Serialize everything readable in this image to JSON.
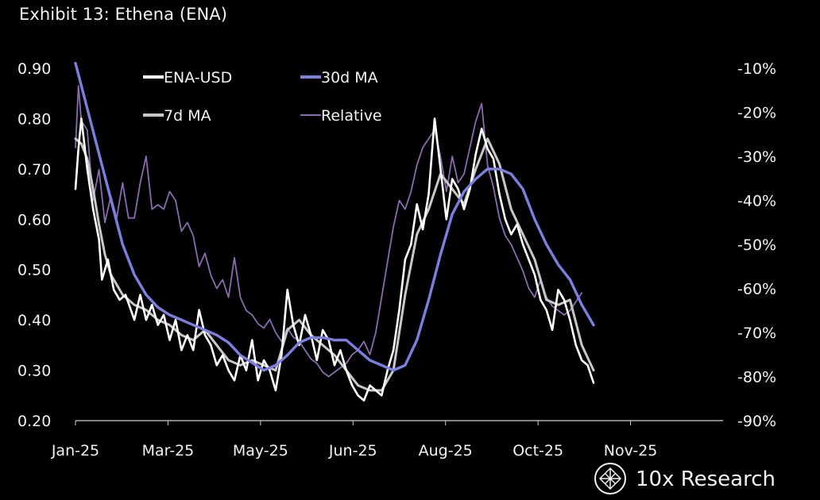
{
  "title": "Exhibit 13: Ethena (ENA)",
  "brand": "10x Research",
  "chart_data": {
    "type": "line",
    "title": "Exhibit 13: Ethena (ENA)",
    "x_categories": [
      "Jan-25",
      "Mar-25",
      "May-25",
      "Jun-25",
      "Aug-25",
      "Oct-25",
      "Nov-25"
    ],
    "y_left": {
      "range": [
        0.2,
        0.9
      ],
      "ticks": [
        "0.20",
        "0.30",
        "0.40",
        "0.50",
        "0.60",
        "0.70",
        "0.80",
        "0.90"
      ]
    },
    "y_right": {
      "range": [
        -90,
        -10
      ],
      "ticks": [
        "-10%",
        "-20%",
        "-30%",
        "-40%",
        "-50%",
        "-60%",
        "-70%",
        "-80%",
        "-90%"
      ]
    },
    "legend": [
      {
        "name": "ENA-USD",
        "color": "#ffffff"
      },
      {
        "name": "30d MA",
        "color": "#7b7fe0"
      },
      {
        "name": "7d MA",
        "color": "#c8c8c8"
      },
      {
        "name": "Relative",
        "color": "#8a6ab0"
      }
    ],
    "series": [
      {
        "name": "ENA-USD",
        "axis": "left",
        "color": "#ffffff",
        "values": [
          [
            0,
            0.66
          ],
          [
            0.5,
            0.74
          ],
          [
            1,
            0.8
          ],
          [
            2,
            0.7
          ],
          [
            3,
            0.62
          ],
          [
            4,
            0.56
          ],
          [
            4.5,
            0.48
          ],
          [
            5.5,
            0.52
          ],
          [
            6.5,
            0.46
          ],
          [
            7.5,
            0.44
          ],
          [
            8.5,
            0.45
          ],
          [
            10,
            0.4
          ],
          [
            11,
            0.45
          ],
          [
            12,
            0.4
          ],
          [
            13,
            0.43
          ],
          [
            14,
            0.39
          ],
          [
            15,
            0.41
          ],
          [
            16,
            0.36
          ],
          [
            17,
            0.4
          ],
          [
            18,
            0.34
          ],
          [
            19,
            0.37
          ],
          [
            20,
            0.34
          ],
          [
            21,
            0.42
          ],
          [
            22,
            0.37
          ],
          [
            23,
            0.35
          ],
          [
            24,
            0.31
          ],
          [
            25,
            0.33
          ],
          [
            26,
            0.3
          ],
          [
            27,
            0.28
          ],
          [
            28,
            0.33
          ],
          [
            29,
            0.3
          ],
          [
            30,
            0.36
          ],
          [
            31,
            0.28
          ],
          [
            32,
            0.32
          ],
          [
            33,
            0.3
          ],
          [
            34,
            0.26
          ],
          [
            35,
            0.33
          ],
          [
            36,
            0.46
          ],
          [
            37,
            0.39
          ],
          [
            38,
            0.35
          ],
          [
            39,
            0.41
          ],
          [
            40,
            0.37
          ],
          [
            41,
            0.32
          ],
          [
            42,
            0.38
          ],
          [
            43,
            0.36
          ],
          [
            44,
            0.31
          ],
          [
            45,
            0.34
          ],
          [
            46,
            0.3
          ],
          [
            47,
            0.27
          ],
          [
            48,
            0.25
          ],
          [
            49,
            0.24
          ],
          [
            50,
            0.27
          ],
          [
            51,
            0.26
          ],
          [
            52,
            0.25
          ],
          [
            53,
            0.3
          ],
          [
            54,
            0.34
          ],
          [
            55,
            0.42
          ],
          [
            56,
            0.52
          ],
          [
            57,
            0.55
          ],
          [
            58,
            0.63
          ],
          [
            59,
            0.58
          ],
          [
            60,
            0.65
          ],
          [
            61,
            0.8
          ],
          [
            62,
            0.7
          ],
          [
            63,
            0.6
          ],
          [
            64,
            0.68
          ],
          [
            65,
            0.66
          ],
          [
            66,
            0.62
          ],
          [
            67,
            0.66
          ],
          [
            68,
            0.73
          ],
          [
            69,
            0.78
          ],
          [
            70,
            0.74
          ],
          [
            71,
            0.72
          ],
          [
            72,
            0.65
          ],
          [
            73,
            0.6
          ],
          [
            74,
            0.57
          ],
          [
            75,
            0.59
          ],
          [
            76,
            0.55
          ],
          [
            77,
            0.52
          ],
          [
            78,
            0.49
          ],
          [
            79,
            0.44
          ],
          [
            80,
            0.42
          ],
          [
            81,
            0.38
          ],
          [
            82,
            0.46
          ],
          [
            83,
            0.44
          ],
          [
            84,
            0.4
          ],
          [
            85,
            0.35
          ],
          [
            86,
            0.32
          ],
          [
            87,
            0.31
          ],
          [
            88,
            0.275
          ]
        ]
      },
      {
        "name": "7d MA",
        "axis": "left",
        "color": "#c8c8c8",
        "values": [
          [
            0,
            0.76
          ],
          [
            1,
            0.75
          ],
          [
            2,
            0.72
          ],
          [
            3,
            0.66
          ],
          [
            4,
            0.59
          ],
          [
            5,
            0.53
          ],
          [
            6,
            0.49
          ],
          [
            7,
            0.47
          ],
          [
            8,
            0.45
          ],
          [
            10,
            0.43
          ],
          [
            12,
            0.42
          ],
          [
            14,
            0.4
          ],
          [
            16,
            0.39
          ],
          [
            18,
            0.37
          ],
          [
            20,
            0.36
          ],
          [
            22,
            0.38
          ],
          [
            24,
            0.35
          ],
          [
            26,
            0.32
          ],
          [
            28,
            0.31
          ],
          [
            30,
            0.32
          ],
          [
            32,
            0.31
          ],
          [
            34,
            0.3
          ],
          [
            36,
            0.38
          ],
          [
            38,
            0.4
          ],
          [
            40,
            0.37
          ],
          [
            42,
            0.35
          ],
          [
            44,
            0.33
          ],
          [
            46,
            0.3
          ],
          [
            48,
            0.27
          ],
          [
            50,
            0.26
          ],
          [
            52,
            0.26
          ],
          [
            54,
            0.3
          ],
          [
            56,
            0.45
          ],
          [
            58,
            0.57
          ],
          [
            60,
            0.62
          ],
          [
            62,
            0.69
          ],
          [
            64,
            0.66
          ],
          [
            66,
            0.63
          ],
          [
            68,
            0.7
          ],
          [
            70,
            0.76
          ],
          [
            72,
            0.71
          ],
          [
            74,
            0.62
          ],
          [
            76,
            0.57
          ],
          [
            78,
            0.52
          ],
          [
            80,
            0.44
          ],
          [
            82,
            0.43
          ],
          [
            84,
            0.44
          ],
          [
            86,
            0.35
          ],
          [
            88,
            0.3
          ]
        ]
      },
      {
        "name": "30d MA",
        "axis": "left",
        "color": "#7b7fe0",
        "values": [
          [
            0,
            0.91
          ],
          [
            2,
            0.82
          ],
          [
            4,
            0.73
          ],
          [
            6,
            0.64
          ],
          [
            8,
            0.55
          ],
          [
            10,
            0.49
          ],
          [
            12,
            0.45
          ],
          [
            14,
            0.425
          ],
          [
            16,
            0.41
          ],
          [
            18,
            0.4
          ],
          [
            20,
            0.39
          ],
          [
            22,
            0.38
          ],
          [
            24,
            0.37
          ],
          [
            26,
            0.355
          ],
          [
            28,
            0.33
          ],
          [
            30,
            0.315
          ],
          [
            32,
            0.3
          ],
          [
            34,
            0.31
          ],
          [
            36,
            0.33
          ],
          [
            38,
            0.355
          ],
          [
            40,
            0.365
          ],
          [
            42,
            0.365
          ],
          [
            44,
            0.36
          ],
          [
            46,
            0.36
          ],
          [
            48,
            0.34
          ],
          [
            50,
            0.32
          ],
          [
            52,
            0.31
          ],
          [
            54,
            0.3
          ],
          [
            56,
            0.31
          ],
          [
            58,
            0.36
          ],
          [
            60,
            0.44
          ],
          [
            62,
            0.53
          ],
          [
            64,
            0.61
          ],
          [
            66,
            0.655
          ],
          [
            68,
            0.68
          ],
          [
            70,
            0.7
          ],
          [
            72,
            0.7
          ],
          [
            74,
            0.69
          ],
          [
            76,
            0.66
          ],
          [
            78,
            0.6
          ],
          [
            80,
            0.55
          ],
          [
            82,
            0.51
          ],
          [
            84,
            0.48
          ],
          [
            86,
            0.43
          ],
          [
            88,
            0.39
          ]
        ]
      },
      {
        "name": "Relative",
        "axis": "right",
        "color": "#8a6ab0",
        "values": [
          [
            0,
            -28
          ],
          [
            0.5,
            -14
          ],
          [
            1,
            -22
          ],
          [
            2,
            -24
          ],
          [
            3,
            -40
          ],
          [
            4,
            -33
          ],
          [
            5,
            -45
          ],
          [
            6,
            -39
          ],
          [
            7,
            -44
          ],
          [
            8,
            -36
          ],
          [
            9,
            -44
          ],
          [
            10,
            -44
          ],
          [
            11,
            -36
          ],
          [
            12,
            -30
          ],
          [
            13,
            -42
          ],
          [
            14,
            -41
          ],
          [
            15,
            -42
          ],
          [
            16,
            -38
          ],
          [
            17,
            -40
          ],
          [
            18,
            -47
          ],
          [
            19,
            -45
          ],
          [
            20,
            -48
          ],
          [
            21,
            -55
          ],
          [
            22,
            -52
          ],
          [
            23,
            -57
          ],
          [
            24,
            -60
          ],
          [
            25,
            -58
          ],
          [
            26,
            -62
          ],
          [
            27,
            -53
          ],
          [
            28,
            -62
          ],
          [
            29,
            -65
          ],
          [
            30,
            -66
          ],
          [
            31,
            -68
          ],
          [
            32,
            -69
          ],
          [
            33,
            -67
          ],
          [
            34,
            -70
          ],
          [
            35,
            -72
          ],
          [
            36,
            -69
          ],
          [
            37,
            -71
          ],
          [
            38,
            -72
          ],
          [
            39,
            -74
          ],
          [
            40,
            -76
          ],
          [
            41,
            -77
          ],
          [
            42,
            -79
          ],
          [
            43,
            -80
          ],
          [
            44,
            -79
          ],
          [
            45,
            -78
          ],
          [
            46,
            -77
          ],
          [
            47,
            -75
          ],
          [
            48,
            -74
          ],
          [
            49,
            -72
          ],
          [
            50,
            -75
          ],
          [
            51,
            -70
          ],
          [
            52,
            -62
          ],
          [
            53,
            -54
          ],
          [
            54,
            -46
          ],
          [
            55,
            -40
          ],
          [
            56,
            -42
          ],
          [
            57,
            -38
          ],
          [
            58,
            -32
          ],
          [
            59,
            -28
          ],
          [
            60,
            -26
          ],
          [
            61,
            -24
          ],
          [
            62,
            -30
          ],
          [
            63,
            -38
          ],
          [
            64,
            -30
          ],
          [
            65,
            -36
          ],
          [
            66,
            -34
          ],
          [
            67,
            -28
          ],
          [
            68,
            -22
          ],
          [
            69,
            -18
          ],
          [
            70,
            -32
          ],
          [
            71,
            -37
          ],
          [
            72,
            -44
          ],
          [
            73,
            -48
          ],
          [
            74,
            -50
          ],
          [
            75,
            -53
          ],
          [
            76,
            -56
          ],
          [
            77,
            -60
          ],
          [
            78,
            -62
          ],
          [
            79,
            -58
          ],
          [
            80,
            -62
          ],
          [
            81,
            -64
          ],
          [
            82,
            -65
          ],
          [
            83,
            -66
          ],
          [
            84,
            -65
          ],
          [
            85,
            -63
          ],
          [
            86,
            -61
          ]
        ]
      }
    ]
  }
}
